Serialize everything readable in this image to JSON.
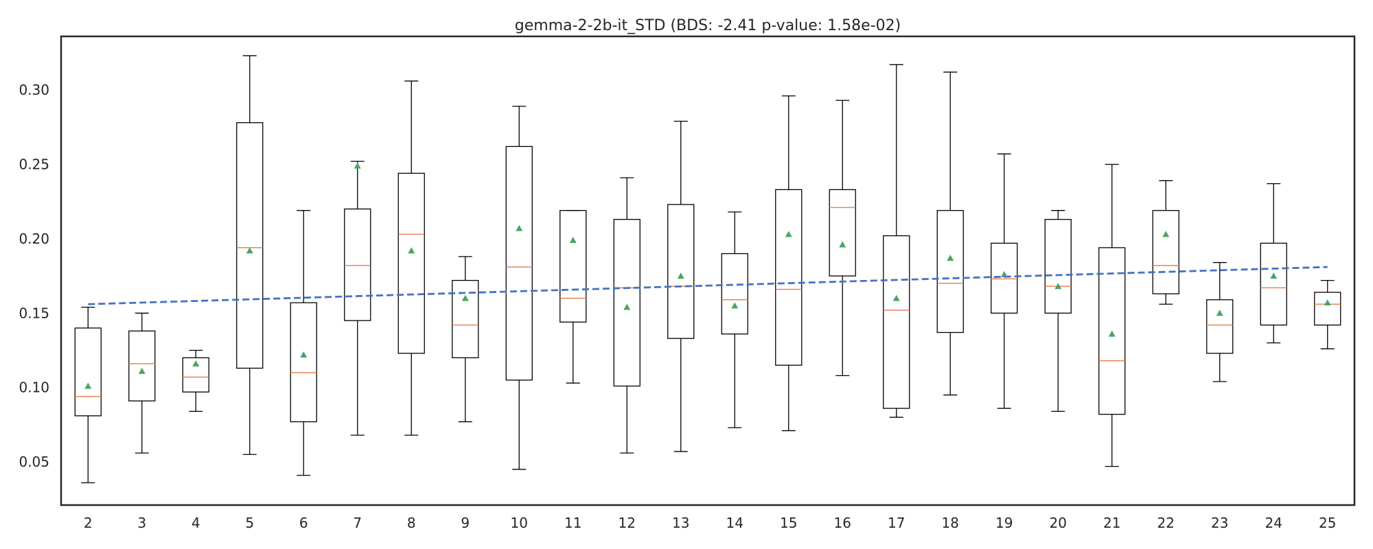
{
  "chart_data": {
    "type": "boxplot",
    "title": "gemma-2-2b-it_STD (BDS: -2.41 p-value: 1.58e-02)",
    "xlabel": "",
    "ylabel": "",
    "ylim": [
      0.021,
      0.336
    ],
    "xlim": [
      1.5,
      25.5
    ],
    "yticks": [
      0.05,
      0.1,
      0.15,
      0.2,
      0.25,
      0.3
    ],
    "ytick_labels": [
      "0.05",
      "0.10",
      "0.15",
      "0.20",
      "0.25",
      "0.30"
    ],
    "grid": false,
    "colors": {
      "box": "#000000",
      "median": "#e8825a",
      "mean_marker": "#4aa564",
      "trend": "#4472c4",
      "frame": "#262626"
    },
    "categories": [
      "2",
      "3",
      "4",
      "5",
      "6",
      "7",
      "8",
      "9",
      "10",
      "11",
      "12",
      "13",
      "14",
      "15",
      "16",
      "17",
      "18",
      "19",
      "20",
      "21",
      "22",
      "23",
      "24",
      "25"
    ],
    "boxes": [
      {
        "x": 2,
        "whislo": 0.036,
        "q1": 0.081,
        "med": 0.094,
        "q3": 0.14,
        "whishi": 0.154,
        "mean": 0.101
      },
      {
        "x": 3,
        "whislo": 0.056,
        "q1": 0.091,
        "med": 0.116,
        "q3": 0.138,
        "whishi": 0.15,
        "mean": 0.111
      },
      {
        "x": 4,
        "whislo": 0.084,
        "q1": 0.097,
        "med": 0.107,
        "q3": 0.12,
        "whishi": 0.125,
        "mean": 0.116
      },
      {
        "x": 5,
        "whislo": 0.055,
        "q1": 0.113,
        "med": 0.194,
        "q3": 0.278,
        "whishi": 0.323,
        "mean": 0.192
      },
      {
        "x": 6,
        "whislo": 0.041,
        "q1": 0.077,
        "med": 0.11,
        "q3": 0.157,
        "whishi": 0.219,
        "mean": 0.122
      },
      {
        "x": 7,
        "whislo": 0.068,
        "q1": 0.145,
        "med": 0.182,
        "q3": 0.22,
        "whishi": 0.252,
        "mean": 0.249
      },
      {
        "x": 8,
        "whislo": 0.068,
        "q1": 0.123,
        "med": 0.203,
        "q3": 0.244,
        "whishi": 0.306,
        "mean": 0.192
      },
      {
        "x": 9,
        "whislo": 0.077,
        "q1": 0.12,
        "med": 0.142,
        "q3": 0.172,
        "whishi": 0.188,
        "mean": 0.16
      },
      {
        "x": 10,
        "whislo": 0.045,
        "q1": 0.105,
        "med": 0.181,
        "q3": 0.262,
        "whishi": 0.289,
        "mean": 0.207
      },
      {
        "x": 11,
        "whislo": 0.103,
        "q1": 0.144,
        "med": 0.16,
        "q3": 0.219,
        "whishi": 0.219,
        "mean": 0.199
      },
      {
        "x": 12,
        "whislo": 0.056,
        "q1": 0.101,
        "med": 0.167,
        "q3": 0.213,
        "whishi": 0.241,
        "mean": 0.154
      },
      {
        "x": 13,
        "whislo": 0.057,
        "q1": 0.133,
        "med": 0.168,
        "q3": 0.223,
        "whishi": 0.279,
        "mean": 0.175
      },
      {
        "x": 14,
        "whislo": 0.073,
        "q1": 0.136,
        "med": 0.159,
        "q3": 0.19,
        "whishi": 0.218,
        "mean": 0.155
      },
      {
        "x": 15,
        "whislo": 0.071,
        "q1": 0.115,
        "med": 0.166,
        "q3": 0.233,
        "whishi": 0.296,
        "mean": 0.203
      },
      {
        "x": 16,
        "whislo": 0.108,
        "q1": 0.175,
        "med": 0.221,
        "q3": 0.233,
        "whishi": 0.293,
        "mean": 0.196
      },
      {
        "x": 17,
        "whislo": 0.08,
        "q1": 0.086,
        "med": 0.152,
        "q3": 0.202,
        "whishi": 0.317,
        "mean": 0.16
      },
      {
        "x": 18,
        "whislo": 0.095,
        "q1": 0.137,
        "med": 0.17,
        "q3": 0.219,
        "whishi": 0.312,
        "mean": 0.187
      },
      {
        "x": 19,
        "whislo": 0.086,
        "q1": 0.15,
        "med": 0.173,
        "q3": 0.197,
        "whishi": 0.257,
        "mean": 0.176
      },
      {
        "x": 20,
        "whislo": 0.084,
        "q1": 0.15,
        "med": 0.168,
        "q3": 0.213,
        "whishi": 0.219,
        "mean": 0.168
      },
      {
        "x": 21,
        "whislo": 0.047,
        "q1": 0.082,
        "med": 0.118,
        "q3": 0.194,
        "whishi": 0.25,
        "mean": 0.136
      },
      {
        "x": 22,
        "whislo": 0.156,
        "q1": 0.163,
        "med": 0.182,
        "q3": 0.219,
        "whishi": 0.239,
        "mean": 0.203
      },
      {
        "x": 23,
        "whislo": 0.104,
        "q1": 0.123,
        "med": 0.142,
        "q3": 0.159,
        "whishi": 0.184,
        "mean": 0.15
      },
      {
        "x": 24,
        "whislo": 0.13,
        "q1": 0.142,
        "med": 0.167,
        "q3": 0.197,
        "whishi": 0.237,
        "mean": 0.175
      },
      {
        "x": 25,
        "whislo": 0.126,
        "q1": 0.142,
        "med": 0.156,
        "q3": 0.164,
        "whishi": 0.172,
        "mean": 0.157
      }
    ],
    "trend_line": {
      "style": "dashed",
      "points": [
        [
          2,
          0.156
        ],
        [
          25,
          0.181
        ]
      ]
    }
  }
}
